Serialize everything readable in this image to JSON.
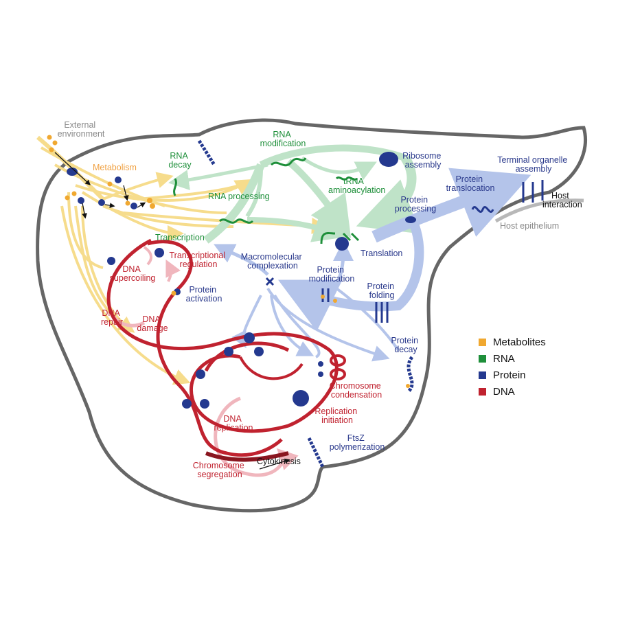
{
  "labels": {
    "external_environment": [
      "External",
      "environment"
    ],
    "metabolism": "Metabolism",
    "rna_decay": [
      "RNA",
      "decay"
    ],
    "rna_modification": [
      "RNA",
      "modification"
    ],
    "ribosome_assembly": [
      "Ribosome",
      "assembly"
    ],
    "trna_aminoacylation": [
      "tRNA",
      "aminoacylation"
    ],
    "rna_processing": "RNA processing",
    "terminal_organelle_assembly": [
      "Terminal organelle",
      "assembly"
    ],
    "protein_translocation": [
      "Protein",
      "translocation"
    ],
    "protein_processing": [
      "Protein",
      "processing"
    ],
    "host_interaction": [
      "Host",
      "interaction"
    ],
    "host_epithelium": "Host epithelium",
    "transcription": "Transcription",
    "translation": "Translation",
    "transcriptional_regulation": [
      "Transcriptional",
      "regulation"
    ],
    "macromolecular_complexation": [
      "Macromolecular",
      "complexation"
    ],
    "protein_modification": [
      "Protein",
      "modification"
    ],
    "protein_folding": [
      "Protein",
      "folding"
    ],
    "dna_supercoiling": [
      "DNA",
      "supercoiling"
    ],
    "protein_activation": [
      "Protein",
      "activation"
    ],
    "dna_repair": [
      "DNA",
      "repair"
    ],
    "dna_damage": [
      "DNA",
      "damage"
    ],
    "protein_decay": [
      "Protein",
      "decay"
    ],
    "chromosome_condensation": [
      "Chromosome",
      "condensation"
    ],
    "replication_initiation": [
      "Replication",
      "initiation"
    ],
    "dna_replication": [
      "DNA",
      "replication"
    ],
    "ftsz_polymerization": [
      "FtsZ",
      "polymerization"
    ],
    "chromosome_segregation": [
      "Chromosome",
      "segregation"
    ],
    "cytokinesis": "Cytokinesis"
  },
  "legend": [
    {
      "label": "Metabolites",
      "color": "#f0a830"
    },
    {
      "label": "RNA",
      "color": "#1e8f3a"
    },
    {
      "label": "Protein",
      "color": "#24398f"
    },
    {
      "label": "DNA",
      "color": "#c0222f"
    }
  ],
  "colors": {
    "metabolite_flow": "#f6dc8c",
    "rna_flow": "#bfe3c8",
    "protein_flow": "#b4c4ea",
    "dna_flow": "#f0b6bd",
    "cell_outline": "#666666",
    "dna_strand": "#c0222f",
    "protein_glyph": "#24398f",
    "rna_glyph": "#1e8f3a"
  }
}
